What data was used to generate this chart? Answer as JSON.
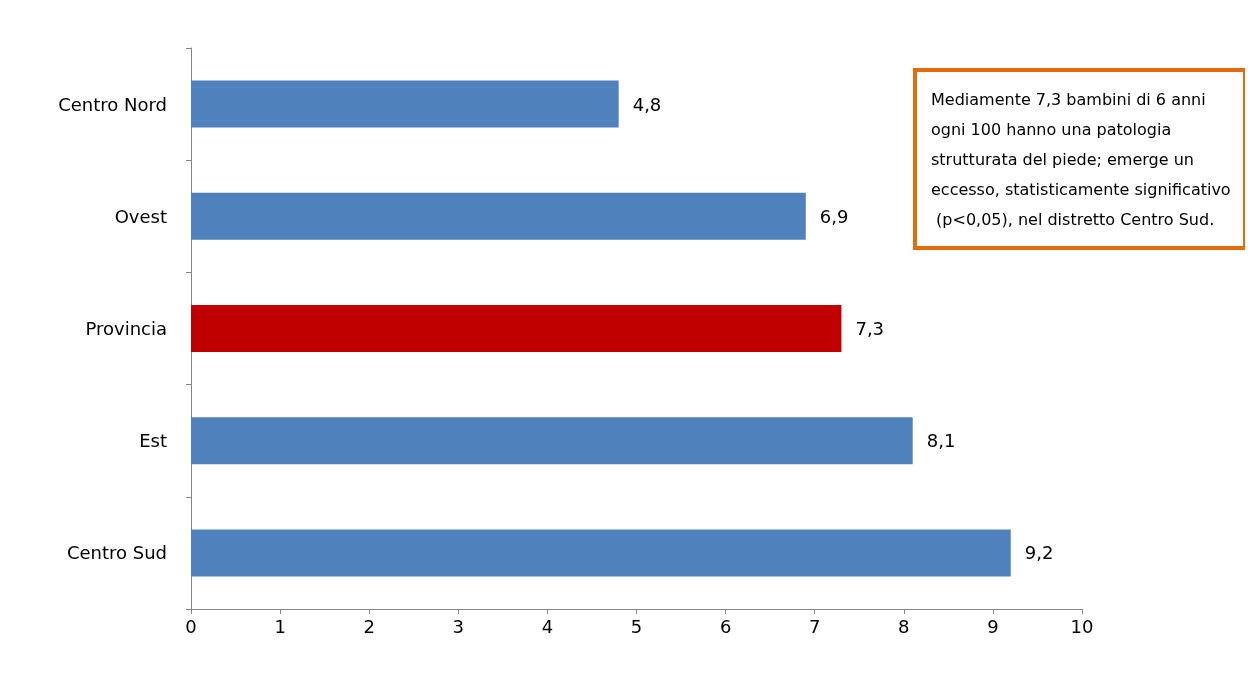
{
  "chart_data": {
    "type": "bar",
    "orientation": "horizontal",
    "categories": [
      "Centro Nord",
      "Ovest",
      "Provincia",
      "Est",
      "Centro Sud"
    ],
    "values": [
      4.8,
      6.9,
      7.3,
      8.1,
      9.2
    ],
    "colors": [
      "#4f81bd",
      "#4f81bd",
      "#c00000",
      "#4f81bd",
      "#4f81bd"
    ],
    "value_labels": [
      "4,8",
      "6,9",
      "7,3",
      "8,1",
      "9,2"
    ],
    "xlim": [
      0,
      10
    ],
    "xticks": [
      0,
      1,
      2,
      3,
      4,
      5,
      6,
      7,
      8,
      9,
      10
    ],
    "grid": false,
    "annotations": [
      "Mediamente 7,3 bambini di 6 anni ogni 100 hanno una patologia strutturata del piede; emerge un eccesso, statisticamente significativo (p<0,05), nel distretto Centro Sud."
    ]
  }
}
